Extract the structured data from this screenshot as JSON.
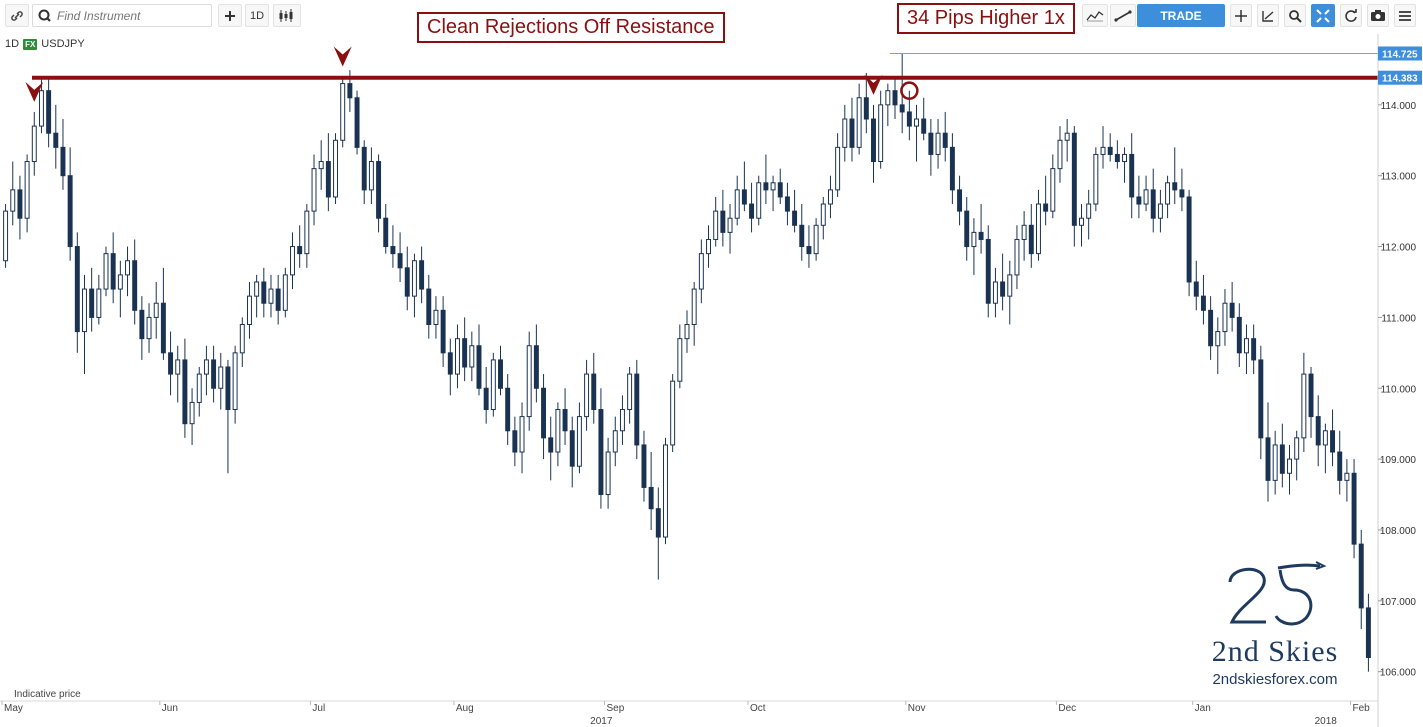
{
  "toolbar": {
    "search_placeholder": "Find Instrument",
    "interval_label": "1D",
    "trade_label": "TRADE",
    "icons": [
      "link-icon",
      "search-icon",
      "plus-icon",
      "candles-icon",
      "indicators-icon",
      "drawing-icon",
      "crosshair-icon",
      "scale-icon",
      "zoom-icon",
      "fit-icon",
      "refresh-icon",
      "camera-icon",
      "menu-icon"
    ]
  },
  "symbol": {
    "interval": "1D",
    "badge": "FX",
    "name": "USDJPY"
  },
  "annotations": {
    "rejections": "Clean Rejections Off Resistance",
    "pips": "34 Pips Higher 1x"
  },
  "footer": {
    "indicative": "Indicative price"
  },
  "logo": {
    "brand": "2nd Skies",
    "url": "2ndskiesforex.com"
  },
  "colors": {
    "bull": "#1a3352",
    "bear": "#1a3352",
    "resistance": "#8a1010",
    "accent": "#3d8fdc",
    "cyan_line": "#4db6d6"
  },
  "chart_data": {
    "type": "candlestick",
    "instrument": "USDJPY",
    "interval": "1D",
    "ylim": [
      105.6,
      115.0
    ],
    "y_ticks": [
      106.0,
      107.0,
      108.0,
      109.0,
      110.0,
      111.0,
      112.0,
      113.0,
      114.0
    ],
    "y_tick_labels": [
      "106.000",
      "107.000",
      "108.000",
      "109.000",
      "110.000",
      "111.000",
      "112.000",
      "113.000",
      "114.000"
    ],
    "price_labels": [
      {
        "value": 114.725,
        "text": "114.725"
      },
      {
        "value": 114.383,
        "text": "114.383"
      }
    ],
    "resistance": 114.383,
    "x_month_labels": [
      {
        "label": "May",
        "index": 0
      },
      {
        "label": "Jun",
        "index": 22
      },
      {
        "label": "Jul",
        "index": 43
      },
      {
        "label": "Aug",
        "index": 63
      },
      {
        "label": "Sep",
        "index": 84
      },
      {
        "label": "Oct",
        "index": 104
      },
      {
        "label": "Nov",
        "index": 126
      },
      {
        "label": "Dec",
        "index": 147
      },
      {
        "label": "Jan",
        "index": 166
      },
      {
        "label": "Feb",
        "index": 188
      }
    ],
    "x_year_labels": [
      {
        "label": "2017",
        "index": 82
      },
      {
        "label": "2018",
        "index": 183
      }
    ],
    "rejection_markers": [
      4,
      47,
      121
    ],
    "circle_marker": 126,
    "ohlc": [
      [
        111.8,
        112.6,
        111.7,
        112.5
      ],
      [
        112.5,
        113.2,
        112.3,
        112.8
      ],
      [
        112.8,
        113.0,
        112.1,
        112.4
      ],
      [
        112.4,
        113.3,
        112.2,
        113.2
      ],
      [
        113.2,
        113.9,
        113.0,
        113.7
      ],
      [
        113.7,
        114.4,
        113.6,
        114.2
      ],
      [
        114.2,
        114.37,
        113.4,
        113.6
      ],
      [
        113.6,
        114.0,
        113.1,
        113.4
      ],
      [
        113.4,
        113.8,
        112.8,
        113.0
      ],
      [
        113.0,
        113.4,
        111.8,
        112.0
      ],
      [
        112.0,
        112.2,
        110.5,
        110.8
      ],
      [
        110.8,
        111.6,
        110.2,
        111.4
      ],
      [
        111.4,
        111.7,
        110.8,
        111.0
      ],
      [
        111.0,
        111.6,
        110.9,
        111.4
      ],
      [
        111.4,
        112.0,
        111.3,
        111.9
      ],
      [
        111.9,
        112.2,
        111.2,
        111.4
      ],
      [
        111.4,
        111.8,
        111.0,
        111.6
      ],
      [
        111.6,
        112.0,
        111.3,
        111.8
      ],
      [
        111.8,
        112.1,
        110.9,
        111.1
      ],
      [
        111.1,
        111.3,
        110.4,
        110.7
      ],
      [
        110.7,
        111.2,
        110.5,
        111.0
      ],
      [
        111.0,
        111.5,
        110.7,
        111.2
      ],
      [
        111.2,
        111.7,
        110.4,
        110.5
      ],
      [
        110.5,
        110.8,
        109.9,
        110.2
      ],
      [
        110.2,
        110.6,
        109.8,
        110.4
      ],
      [
        110.4,
        110.7,
        109.3,
        109.5
      ],
      [
        109.5,
        110.0,
        109.2,
        109.8
      ],
      [
        109.8,
        110.3,
        109.6,
        110.2
      ],
      [
        110.2,
        110.6,
        109.9,
        110.4
      ],
      [
        110.4,
        110.6,
        109.8,
        110.0
      ],
      [
        110.0,
        110.5,
        109.7,
        110.3
      ],
      [
        110.3,
        110.4,
        108.8,
        109.7
      ],
      [
        109.7,
        110.6,
        109.5,
        110.5
      ],
      [
        110.5,
        111.0,
        110.3,
        110.9
      ],
      [
        110.9,
        111.5,
        110.7,
        111.3
      ],
      [
        111.3,
        111.6,
        111.0,
        111.5
      ],
      [
        111.5,
        111.7,
        111.0,
        111.2
      ],
      [
        111.2,
        111.6,
        111.0,
        111.4
      ],
      [
        111.4,
        111.6,
        110.9,
        111.1
      ],
      [
        111.1,
        111.7,
        111.0,
        111.6
      ],
      [
        111.6,
        112.2,
        111.4,
        112.0
      ],
      [
        112.0,
        112.3,
        111.7,
        111.9
      ],
      [
        111.9,
        112.6,
        111.7,
        112.5
      ],
      [
        112.5,
        113.3,
        112.3,
        113.1
      ],
      [
        113.1,
        113.5,
        112.8,
        113.2
      ],
      [
        113.2,
        113.6,
        112.5,
        112.7
      ],
      [
        112.7,
        113.6,
        112.6,
        113.5
      ],
      [
        113.5,
        114.4,
        113.4,
        114.3
      ],
      [
        114.3,
        114.49,
        113.9,
        114.1
      ],
      [
        114.1,
        114.2,
        113.3,
        113.4
      ],
      [
        113.4,
        113.5,
        112.6,
        112.8
      ],
      [
        112.8,
        113.4,
        112.6,
        113.2
      ],
      [
        113.2,
        113.3,
        112.2,
        112.4
      ],
      [
        112.4,
        112.6,
        111.9,
        112.0
      ],
      [
        112.0,
        112.3,
        111.7,
        111.9
      ],
      [
        111.9,
        112.2,
        111.5,
        111.7
      ],
      [
        111.7,
        112.0,
        111.1,
        111.3
      ],
      [
        111.3,
        111.9,
        111.0,
        111.8
      ],
      [
        111.8,
        112.0,
        111.2,
        111.4
      ],
      [
        111.4,
        111.6,
        110.7,
        110.9
      ],
      [
        110.9,
        111.3,
        110.7,
        111.1
      ],
      [
        111.1,
        111.3,
        110.3,
        110.5
      ],
      [
        110.5,
        110.7,
        109.9,
        110.2
      ],
      [
        110.2,
        110.9,
        110.0,
        110.7
      ],
      [
        110.7,
        111.0,
        110.1,
        110.3
      ],
      [
        110.3,
        110.8,
        110.1,
        110.6
      ],
      [
        110.6,
        110.9,
        109.9,
        110.0
      ],
      [
        110.0,
        110.3,
        109.5,
        109.7
      ],
      [
        109.7,
        110.5,
        109.6,
        110.4
      ],
      [
        110.4,
        110.6,
        109.9,
        110.0
      ],
      [
        110.0,
        110.2,
        109.2,
        109.4
      ],
      [
        109.4,
        109.6,
        108.9,
        109.1
      ],
      [
        109.1,
        109.8,
        108.8,
        109.6
      ],
      [
        109.6,
        110.8,
        109.4,
        110.6
      ],
      [
        110.6,
        110.9,
        109.8,
        110.0
      ],
      [
        110.0,
        110.2,
        109.0,
        109.3
      ],
      [
        109.3,
        109.6,
        108.7,
        109.1
      ],
      [
        109.1,
        109.8,
        108.9,
        109.7
      ],
      [
        109.7,
        110.0,
        109.2,
        109.4
      ],
      [
        109.4,
        109.6,
        108.6,
        108.9
      ],
      [
        108.9,
        109.8,
        108.8,
        109.6
      ],
      [
        109.6,
        110.4,
        109.4,
        110.2
      ],
      [
        110.2,
        110.5,
        109.5,
        109.7
      ],
      [
        109.7,
        110.0,
        108.3,
        108.5
      ],
      [
        108.5,
        109.3,
        108.3,
        109.1
      ],
      [
        109.1,
        109.6,
        108.9,
        109.4
      ],
      [
        109.4,
        109.9,
        109.2,
        109.7
      ],
      [
        109.7,
        110.3,
        109.5,
        110.2
      ],
      [
        110.2,
        110.4,
        109.0,
        109.2
      ],
      [
        109.2,
        109.4,
        108.4,
        108.6
      ],
      [
        108.6,
        109.1,
        108.0,
        108.3
      ],
      [
        108.3,
        108.6,
        107.3,
        107.9
      ],
      [
        107.9,
        109.3,
        107.8,
        109.2
      ],
      [
        109.2,
        110.2,
        109.1,
        110.1
      ],
      [
        110.1,
        110.9,
        110.0,
        110.7
      ],
      [
        110.7,
        111.1,
        110.5,
        110.9
      ],
      [
        110.9,
        111.5,
        110.6,
        111.4
      ],
      [
        111.4,
        112.1,
        111.2,
        111.9
      ],
      [
        111.9,
        112.3,
        111.7,
        112.1
      ],
      [
        112.1,
        112.7,
        112.0,
        112.5
      ],
      [
        112.5,
        112.8,
        112.0,
        112.2
      ],
      [
        112.2,
        112.6,
        111.9,
        112.4
      ],
      [
        112.4,
        113.0,
        112.3,
        112.8
      ],
      [
        112.8,
        113.2,
        112.5,
        112.6
      ],
      [
        112.6,
        112.9,
        112.2,
        112.4
      ],
      [
        112.4,
        113.0,
        112.3,
        112.9
      ],
      [
        112.9,
        113.3,
        112.6,
        112.8
      ],
      [
        112.8,
        113.0,
        112.5,
        112.9
      ],
      [
        112.9,
        113.1,
        112.6,
        112.7
      ],
      [
        112.7,
        112.9,
        112.3,
        112.5
      ],
      [
        112.5,
        112.8,
        112.2,
        112.3
      ],
      [
        112.3,
        112.6,
        111.8,
        112.0
      ],
      [
        112.0,
        112.3,
        111.7,
        111.9
      ],
      [
        111.9,
        112.4,
        111.8,
        112.3
      ],
      [
        112.3,
        112.7,
        112.1,
        112.6
      ],
      [
        112.6,
        113.0,
        112.4,
        112.8
      ],
      [
        112.8,
        113.6,
        112.7,
        113.4
      ],
      [
        113.4,
        114.0,
        113.2,
        113.8
      ],
      [
        113.8,
        114.1,
        113.2,
        113.4
      ],
      [
        113.4,
        114.3,
        113.3,
        114.1
      ],
      [
        114.1,
        114.45,
        113.6,
        113.8
      ],
      [
        113.8,
        114.0,
        112.9,
        113.2
      ],
      [
        113.2,
        114.2,
        113.1,
        114.0
      ],
      [
        114.0,
        114.3,
        113.7,
        114.2
      ],
      [
        114.2,
        114.4,
        113.8,
        114.0
      ],
      [
        114.0,
        114.725,
        113.6,
        113.9
      ],
      [
        113.9,
        114.2,
        113.5,
        113.7
      ],
      [
        113.7,
        114.0,
        113.2,
        113.8
      ],
      [
        113.8,
        114.1,
        113.5,
        113.6
      ],
      [
        113.6,
        113.8,
        113.0,
        113.3
      ],
      [
        113.3,
        113.8,
        113.1,
        113.6
      ],
      [
        113.6,
        113.9,
        113.2,
        113.4
      ],
      [
        113.4,
        113.6,
        112.6,
        112.8
      ],
      [
        112.8,
        113.0,
        112.3,
        112.5
      ],
      [
        112.5,
        112.7,
        111.8,
        112.0
      ],
      [
        112.0,
        112.4,
        111.6,
        112.2
      ],
      [
        112.2,
        112.6,
        111.9,
        112.1
      ],
      [
        112.1,
        112.3,
        111.0,
        111.2
      ],
      [
        111.2,
        111.7,
        111.0,
        111.5
      ],
      [
        111.5,
        111.9,
        111.1,
        111.3
      ],
      [
        111.3,
        111.8,
        110.9,
        111.6
      ],
      [
        111.6,
        112.3,
        111.4,
        112.1
      ],
      [
        112.1,
        112.5,
        111.8,
        112.3
      ],
      [
        112.3,
        112.6,
        111.7,
        111.9
      ],
      [
        111.9,
        112.8,
        111.8,
        112.6
      ],
      [
        112.6,
        113.0,
        112.3,
        112.5
      ],
      [
        112.5,
        113.3,
        112.4,
        113.1
      ],
      [
        113.1,
        113.7,
        112.9,
        113.5
      ],
      [
        113.5,
        113.8,
        113.2,
        113.6
      ],
      [
        113.6,
        113.7,
        112.0,
        112.3
      ],
      [
        112.3,
        112.6,
        112.0,
        112.4
      ],
      [
        112.4,
        112.8,
        112.1,
        112.6
      ],
      [
        112.6,
        113.4,
        112.5,
        113.3
      ],
      [
        113.3,
        113.7,
        113.1,
        113.4
      ],
      [
        113.4,
        113.6,
        113.2,
        113.3
      ],
      [
        113.3,
        113.5,
        113.1,
        113.2
      ],
      [
        113.2,
        113.4,
        112.9,
        113.3
      ],
      [
        113.3,
        113.6,
        112.4,
        112.7
      ],
      [
        112.7,
        113.0,
        112.4,
        112.6
      ],
      [
        112.6,
        113.0,
        112.5,
        112.8
      ],
      [
        112.8,
        113.1,
        112.2,
        112.4
      ],
      [
        112.4,
        112.8,
        112.2,
        112.6
      ],
      [
        112.6,
        113.0,
        112.4,
        112.9
      ],
      [
        112.9,
        113.4,
        112.6,
        112.8
      ],
      [
        112.8,
        113.1,
        112.5,
        112.7
      ],
      [
        112.7,
        112.8,
        111.3,
        111.5
      ],
      [
        111.5,
        111.8,
        111.1,
        111.3
      ],
      [
        111.3,
        111.6,
        110.9,
        111.1
      ],
      [
        111.1,
        111.3,
        110.4,
        110.6
      ],
      [
        110.6,
        111.0,
        110.2,
        110.8
      ],
      [
        110.8,
        111.4,
        110.6,
        111.2
      ],
      [
        111.2,
        111.5,
        110.8,
        111.0
      ],
      [
        111.0,
        111.2,
        110.3,
        110.5
      ],
      [
        110.5,
        110.9,
        110.2,
        110.7
      ],
      [
        110.7,
        110.9,
        110.2,
        110.4
      ],
      [
        110.4,
        110.6,
        109.0,
        109.3
      ],
      [
        109.3,
        109.8,
        108.4,
        108.7
      ],
      [
        108.7,
        109.4,
        108.5,
        109.2
      ],
      [
        109.2,
        109.5,
        108.6,
        108.8
      ],
      [
        108.8,
        109.2,
        108.5,
        109.0
      ],
      [
        109.0,
        109.4,
        108.7,
        109.3
      ],
      [
        109.3,
        110.5,
        109.1,
        110.2
      ],
      [
        110.2,
        110.3,
        109.3,
        109.6
      ],
      [
        109.6,
        109.9,
        108.9,
        109.2
      ],
      [
        109.2,
        109.5,
        108.8,
        109.4
      ],
      [
        109.4,
        109.7,
        108.9,
        109.1
      ],
      [
        109.1,
        109.4,
        108.5,
        108.7
      ],
      [
        108.7,
        109.0,
        108.4,
        108.8
      ],
      [
        108.8,
        109.0,
        107.6,
        107.8
      ],
      [
        107.8,
        108.0,
        106.6,
        106.9
      ],
      [
        106.9,
        107.1,
        106.0,
        106.2
      ]
    ]
  }
}
